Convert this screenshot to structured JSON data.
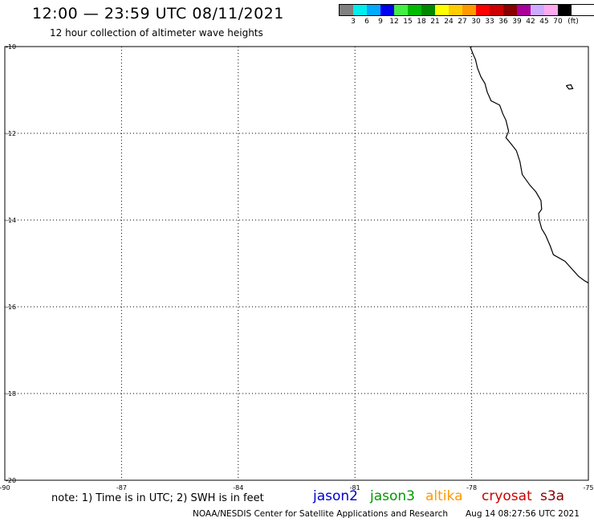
{
  "header": {
    "title": "12:00 — 23:59 UTC 08/11/2021",
    "subtitle": "12 hour collection of altimeter wave heights"
  },
  "colorbar": {
    "colors": [
      "#808080",
      "#00eeee",
      "#00aaff",
      "#0000ee",
      "#44ee44",
      "#00bb00",
      "#008800",
      "#ffff00",
      "#ffcc00",
      "#ff9900",
      "#ff0000",
      "#cc0000",
      "#880000",
      "#aa0099",
      "#ccaaff",
      "#ffaaee",
      "#000000"
    ],
    "labels": [
      "3",
      "6",
      "9",
      "12",
      "15",
      "18",
      "21",
      "24",
      "27",
      "30",
      "33",
      "36",
      "39",
      "42",
      "45",
      "70"
    ],
    "unit": "(ft)"
  },
  "map": {
    "lon_range": [
      -90,
      -75
    ],
    "lat_range": [
      -20,
      -10
    ],
    "lon_ticks": [
      {
        "value": -90,
        "label": "-90"
      },
      {
        "value": -87,
        "label": "-87"
      },
      {
        "value": -84,
        "label": "-84"
      },
      {
        "value": -81,
        "label": "-81"
      },
      {
        "value": -78,
        "label": "-78"
      },
      {
        "value": -75,
        "label": "-75"
      }
    ],
    "lat_ticks": [
      {
        "value": -10,
        "label": "-10"
      },
      {
        "value": -12,
        "label": "-12"
      },
      {
        "value": -14,
        "label": "-14"
      },
      {
        "value": -16,
        "label": "-16"
      },
      {
        "value": -18,
        "label": "-18"
      },
      {
        "value": -20,
        "label": "-20"
      }
    ],
    "coastline": [
      [
        -78.04,
        -10.0
      ],
      [
        -77.96,
        -10.18
      ],
      [
        -77.9,
        -10.3
      ],
      [
        -77.85,
        -10.5
      ],
      [
        -77.76,
        -10.7
      ],
      [
        -77.66,
        -10.85
      ],
      [
        -77.6,
        -11.05
      ],
      [
        -77.5,
        -11.25
      ],
      [
        -77.28,
        -11.35
      ],
      [
        -77.2,
        -11.55
      ],
      [
        -77.12,
        -11.7
      ],
      [
        -77.05,
        -11.95
      ],
      [
        -77.12,
        -12.1
      ],
      [
        -76.98,
        -12.25
      ],
      [
        -76.85,
        -12.4
      ],
      [
        -76.76,
        -12.65
      ],
      [
        -76.7,
        -12.95
      ],
      [
        -76.5,
        -13.2
      ],
      [
        -76.35,
        -13.35
      ],
      [
        -76.22,
        -13.55
      ],
      [
        -76.2,
        -13.75
      ],
      [
        -76.28,
        -13.85
      ],
      [
        -76.26,
        -14.0
      ],
      [
        -76.2,
        -14.2
      ],
      [
        -76.1,
        -14.35
      ],
      [
        -75.98,
        -14.6
      ],
      [
        -75.9,
        -14.8
      ],
      [
        -75.6,
        -14.95
      ],
      [
        -75.4,
        -15.15
      ],
      [
        -75.25,
        -15.3
      ],
      [
        -75.1,
        -15.4
      ],
      [
        -75.0,
        -15.45
      ]
    ],
    "island": [
      [
        -75.57,
        -10.9
      ],
      [
        -75.45,
        -10.88
      ],
      [
        -75.4,
        -10.97
      ],
      [
        -75.5,
        -10.98
      ],
      [
        -75.57,
        -10.9
      ]
    ]
  },
  "footer": {
    "note": "note: 1) Time is in UTC; 2) SWH is in feet",
    "credit": "NOAA/NESDIS Center for Satellite Applications and Research",
    "timestamp": "Aug 14 08:27:56 UTC 2021"
  },
  "legend": [
    {
      "label": "jason2",
      "color": "#0000cc"
    },
    {
      "label": "jason3",
      "color": "#009900"
    },
    {
      "label": "altika",
      "color": "#ff9900"
    },
    {
      "label": "cryosat",
      "color": "#cc0000"
    },
    {
      "label": "s3a",
      "color": "#880000"
    }
  ]
}
